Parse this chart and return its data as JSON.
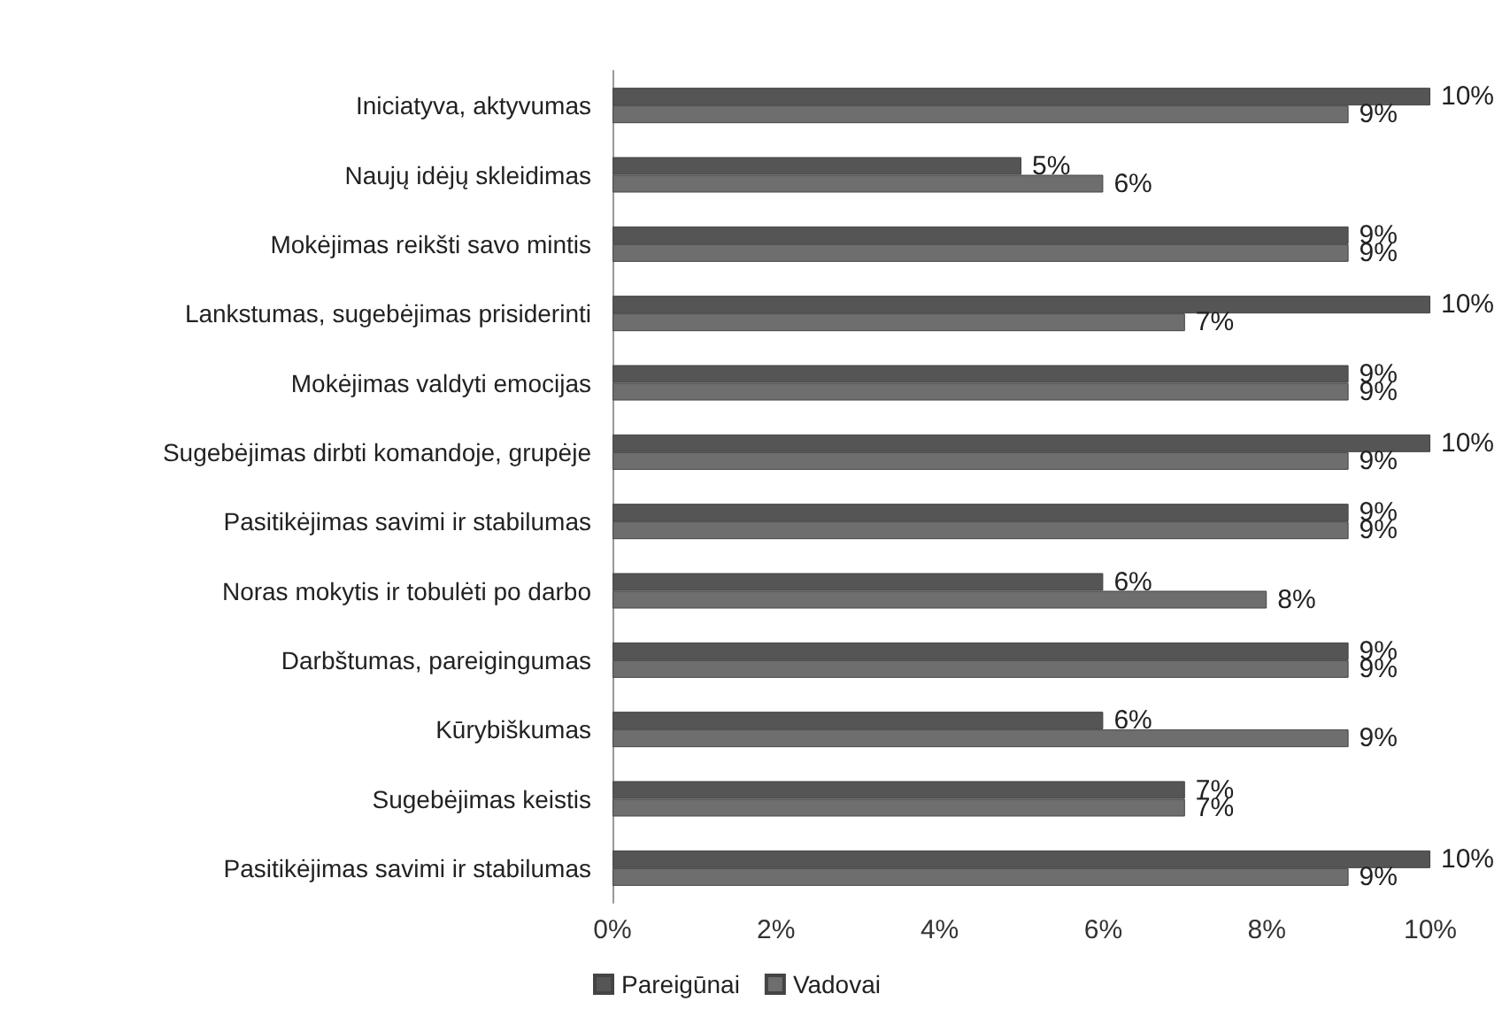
{
  "chart_data": {
    "type": "bar",
    "orientation": "horizontal",
    "categories": [
      "Iniciatyva, aktyvumas",
      "Naujų idėjų skleidimas",
      "Mokėjimas reikšti savo mintis",
      "Lankstumas, sugebėjimas prisiderinti",
      "Mokėjimas valdyti emocijas",
      "Sugebėjimas dirbti komandoje, grupėje",
      "Pasitikėjimas savimi ir stabilumas",
      "Noras mokytis ir tobulėti po darbo",
      "Darbštumas, pareigingumas",
      "Kūrybiškumas",
      "Sugebėjimas keistis",
      "Pasitikėjimas savimi ir stabilumas"
    ],
    "series": [
      {
        "name": "Pareigūnai",
        "color": "#555555",
        "values": [
          10,
          5,
          9,
          10,
          9,
          10,
          9,
          6,
          9,
          6,
          7,
          10
        ],
        "value_labels": [
          "10%",
          "5%",
          "9%",
          "10%",
          "9%",
          "10%",
          "9%",
          "6%",
          "9%",
          "6%",
          "7%",
          "10%"
        ]
      },
      {
        "name": "Vadovai",
        "color": "#6e6e6e",
        "values": [
          9,
          6,
          9,
          7,
          9,
          9,
          9,
          8,
          9,
          9,
          7,
          9
        ],
        "value_labels": [
          "9%",
          "6%",
          "9%",
          "7%",
          "9%",
          "9%",
          "9%",
          "8%",
          "9%",
          "9%",
          "7%",
          "9%"
        ]
      }
    ],
    "xlim": [
      0,
      10
    ],
    "xticks": [
      {
        "value": 0,
        "label": "0%"
      },
      {
        "value": 2,
        "label": "2%"
      },
      {
        "value": 4,
        "label": "4%"
      },
      {
        "value": 6,
        "label": "6%"
      },
      {
        "value": 8,
        "label": "8%"
      },
      {
        "value": 10,
        "label": "10%"
      }
    ],
    "grid": false,
    "legend": "bottom"
  }
}
